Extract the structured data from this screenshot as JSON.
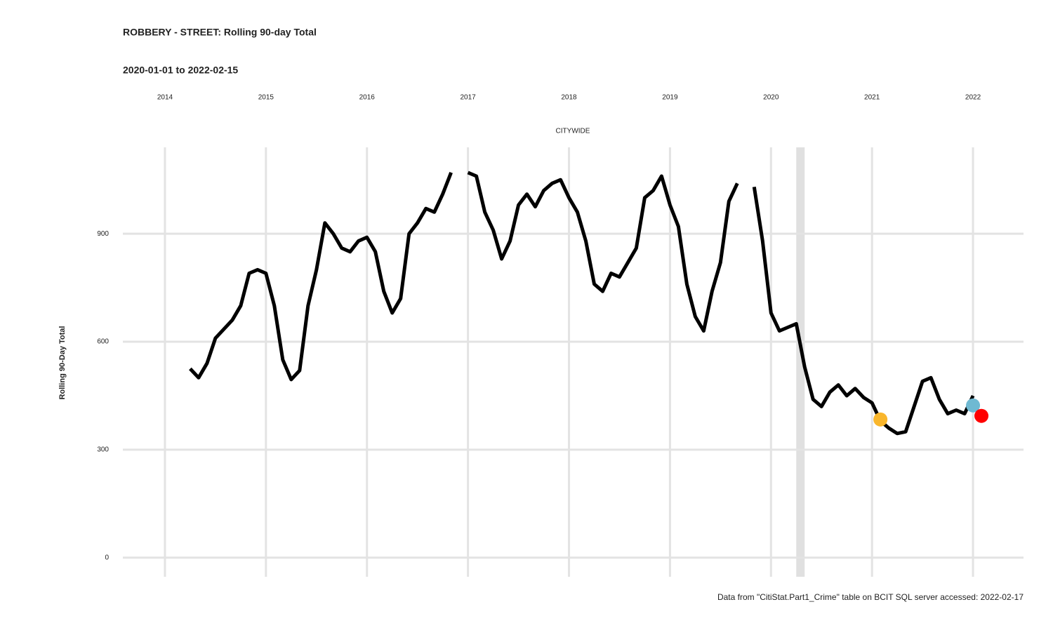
{
  "chart_data": {
    "type": "line",
    "title": "ROBBERY - STREET: Rolling 90-day Total",
    "subtitle": "2020-01-01 to 2022-02-15",
    "facet_label": "CITYWIDE",
    "y_label": "Rolling 90-Day Total",
    "caption": "Data from \"CitiStat.Part1_Crime\" table on BCIT SQL server accessed: 2022-02-17",
    "xlim": [
      "2013-08",
      "2022-07"
    ],
    "ylim": [
      -53,
      1140
    ],
    "xticks": [
      {
        "value": "2014-01",
        "label": "2014"
      },
      {
        "value": "2015-01",
        "label": "2015"
      },
      {
        "value": "2016-01",
        "label": "2016"
      },
      {
        "value": "2017-01",
        "label": "2017"
      },
      {
        "value": "2018-01",
        "label": "2018"
      },
      {
        "value": "2019-01",
        "label": "2019"
      },
      {
        "value": "2020-01",
        "label": "2020"
      },
      {
        "value": "2021-01",
        "label": "2021"
      },
      {
        "value": "2022-01",
        "label": "2022"
      }
    ],
    "yticks": [
      0,
      300,
      600,
      900
    ],
    "grid": true,
    "shaded_period": [
      "2020-04",
      "2020-05"
    ],
    "shaded_color": "#e0e0e0",
    "x": [
      "2014-04",
      "2014-05",
      "2014-06",
      "2014-07",
      "2014-08",
      "2014-09",
      "2014-10",
      "2014-11",
      "2014-12",
      "2015-01",
      "2015-02",
      "2015-03",
      "2015-04",
      "2015-05",
      "2015-06",
      "2015-07",
      "2015-08",
      "2015-09",
      "2015-10",
      "2015-11",
      "2015-12",
      "2016-01",
      "2016-02",
      "2016-03",
      "2016-04",
      "2016-05",
      "2016-06",
      "2016-07",
      "2016-08",
      "2016-09",
      "2016-10",
      "2016-11",
      "2016-12",
      "2017-01",
      "2017-02",
      "2017-03",
      "2017-04",
      "2017-05",
      "2017-06",
      "2017-07",
      "2017-08",
      "2017-09",
      "2017-10",
      "2017-11",
      "2017-12",
      "2018-01",
      "2018-02",
      "2018-03",
      "2018-04",
      "2018-05",
      "2018-06",
      "2018-07",
      "2018-08",
      "2018-09",
      "2018-10",
      "2018-11",
      "2018-12",
      "2019-01",
      "2019-02",
      "2019-03",
      "2019-04",
      "2019-05",
      "2019-06",
      "2019-07",
      "2019-08",
      "2019-09",
      "2019-10",
      "2019-11",
      "2019-12",
      "2020-01",
      "2020-02",
      "2020-03",
      "2020-04",
      "2020-05",
      "2020-06",
      "2020-07",
      "2020-08",
      "2020-09",
      "2020-10",
      "2020-11",
      "2020-12",
      "2021-01",
      "2021-02",
      "2021-03",
      "2021-04",
      "2021-05",
      "2021-06",
      "2021-07",
      "2021-08",
      "2021-09",
      "2021-10",
      "2021-11",
      "2021-12",
      "2022-01"
    ],
    "series": [
      {
        "color": "#000000",
        "values": [
          525,
          500,
          540,
          610,
          635,
          660,
          700,
          790,
          800,
          790,
          700,
          550,
          495,
          520,
          700,
          800,
          930,
          900,
          860,
          850,
          880,
          890,
          850,
          740,
          680,
          720,
          900,
          930,
          970,
          960,
          1010,
          1070,
          null,
          1070,
          1060,
          960,
          910,
          830,
          880,
          980,
          1010,
          975,
          1020,
          1040,
          1050,
          1000,
          960,
          880,
          760,
          740,
          790,
          780,
          820,
          860,
          1000,
          1020,
          1060,
          980,
          920,
          760,
          670,
          630,
          740,
          820,
          990,
          1040,
          null,
          1030,
          880,
          680,
          630,
          640,
          650,
          530,
          440,
          420,
          460,
          480,
          450,
          470,
          445,
          430,
          380,
          360,
          345,
          350,
          420,
          490,
          500,
          440,
          400,
          410,
          400,
          450
        ]
      }
    ],
    "points": [
      {
        "x": "2021-02",
        "value": 384,
        "color": "#f9b62c"
      },
      {
        "x": "2022-01",
        "value": 423,
        "color": "#6fb9d2"
      },
      {
        "x": "2022-02",
        "value": 394,
        "color": "#ff0000"
      }
    ]
  }
}
